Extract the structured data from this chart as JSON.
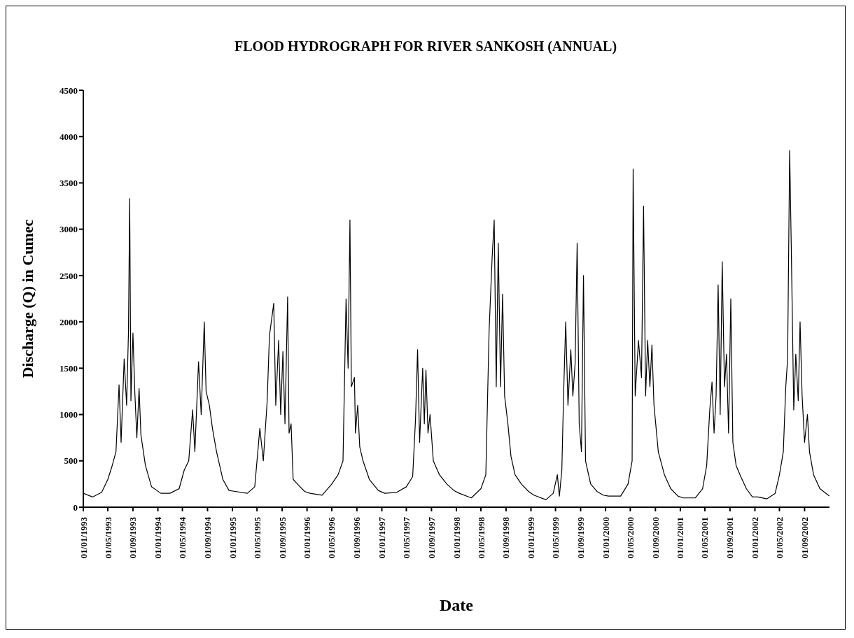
{
  "chart_data": {
    "type": "line",
    "title": "FLOOD HYDROGRAPH FOR RIVER SANKOSH (ANNUAL)",
    "xlabel": "Date",
    "ylabel": "Discharge (Q) in Cumec",
    "x": [
      "1993-01-01",
      "1993-02-15",
      "1993-04-01",
      "1993-05-01",
      "1993-05-20",
      "1993-06-10",
      "1993-06-25",
      "1993-07-05",
      "1993-07-20",
      "1993-08-01",
      "1993-08-10",
      "1993-08-16",
      "1993-08-22",
      "1993-09-01",
      "1993-09-10",
      "1993-09-20",
      "1993-10-01",
      "1993-10-10",
      "1993-11-01",
      "1993-12-01",
      "1994-01-15",
      "1994-03-01",
      "1994-04-15",
      "1994-05-10",
      "1994-06-01",
      "1994-06-20",
      "1994-07-01",
      "1994-07-19",
      "1994-08-01",
      "1994-08-16",
      "1994-08-25",
      "1994-09-10",
      "1994-09-25",
      "1994-10-15",
      "1994-11-15",
      "1994-12-15",
      "1995-01-15",
      "1995-03-15",
      "1995-04-20",
      "1995-05-15",
      "1995-06-01",
      "1995-06-20",
      "1995-07-01",
      "1995-07-22",
      "1995-08-01",
      "1995-08-15",
      "1995-08-25",
      "1995-09-05",
      "1995-09-15",
      "1995-09-28",
      "1995-10-05",
      "1995-10-15",
      "1995-10-25",
      "1995-11-15",
      "1995-12-20",
      "1996-01-15",
      "1996-03-15",
      "1996-05-01",
      "1996-06-01",
      "1996-06-25",
      "1996-07-10",
      "1996-07-20",
      "1996-07-29",
      "1996-08-05",
      "1996-08-20",
      "1996-08-25",
      "1996-09-05",
      "1996-09-15",
      "1996-10-01",
      "1996-11-01",
      "1996-12-15",
      "1997-01-15",
      "1997-03-15",
      "1997-05-01",
      "1997-06-01",
      "1997-06-15",
      "1997-06-25",
      "1997-07-05",
      "1997-07-20",
      "1997-07-28",
      "1997-08-05",
      "1997-08-15",
      "1997-08-25",
      "1997-09-10",
      "1997-10-10",
      "1997-11-15",
      "1997-12-20",
      "1998-01-15",
      "1998-03-15",
      "1998-05-01",
      "1998-05-25",
      "1998-06-10",
      "1998-06-25",
      "1998-07-05",
      "1998-07-15",
      "1998-07-25",
      "1998-08-05",
      "1998-08-15",
      "1998-08-25",
      "1998-09-10",
      "1998-09-25",
      "1998-10-15",
      "1998-11-15",
      "1998-12-20",
      "1999-01-15",
      "1999-03-15",
      "1999-04-20",
      "1999-05-10",
      "1999-05-20",
      "1999-06-01",
      "1999-06-10",
      "1999-06-20",
      "1999-07-01",
      "1999-07-15",
      "1999-07-25",
      "1999-08-05",
      "1999-08-15",
      "1999-08-25",
      "1999-09-05",
      "1999-09-15",
      "1999-09-25",
      "1999-10-20",
      "1999-11-20",
      "1999-12-20",
      "2000-01-15",
      "2000-03-15",
      "2000-04-20",
      "2000-05-10",
      "2000-05-15",
      "2000-05-25",
      "2000-06-10",
      "2000-06-25",
      "2000-07-05",
      "2000-07-15",
      "2000-07-25",
      "2000-08-05",
      "2000-08-15",
      "2000-08-25",
      "2000-09-15",
      "2000-10-15",
      "2000-11-15",
      "2000-12-20",
      "2001-01-15",
      "2001-03-15",
      "2001-04-20",
      "2001-05-10",
      "2001-05-25",
      "2001-06-05",
      "2001-06-15",
      "2001-06-25",
      "2001-07-05",
      "2001-07-15",
      "2001-07-25",
      "2001-08-05",
      "2001-08-15",
      "2001-08-25",
      "2001-09-05",
      "2001-09-15",
      "2001-10-01",
      "2001-10-20",
      "2001-11-20",
      "2001-12-20",
      "2002-01-15",
      "2002-03-01",
      "2002-04-10",
      "2002-05-01",
      "2002-05-20",
      "2002-06-01",
      "2002-06-10",
      "2002-06-20",
      "2002-06-28",
      "2002-07-10",
      "2002-07-20",
      "2002-08-01",
      "2002-08-10",
      "2002-08-20",
      "2002-09-01",
      "2002-09-15",
      "2002-09-25",
      "2002-10-15",
      "2002-11-15",
      "2002-12-31"
    ],
    "series": [
      {
        "color": "#000000",
        "values": [
          150,
          110,
          160,
          300,
          430,
          600,
          1320,
          700,
          1600,
          1100,
          1880,
          3330,
          1150,
          1880,
          1250,
          750,
          1280,
          780,
          450,
          220,
          150,
          150,
          200,
          400,
          500,
          1050,
          600,
          1570,
          1000,
          2000,
          1250,
          1100,
          850,
          600,
          300,
          180,
          170,
          150,
          220,
          850,
          500,
          1150,
          1850,
          2200,
          1100,
          1800,
          1000,
          1680,
          900,
          2270,
          800,
          900,
          300,
          250,
          170,
          150,
          130,
          250,
          350,
          500,
          2250,
          1500,
          3100,
          1300,
          1400,
          800,
          1100,
          650,
          500,
          300,
          180,
          150,
          160,
          220,
          330,
          950,
          1700,
          700,
          1500,
          900,
          1480,
          800,
          1000,
          500,
          350,
          250,
          180,
          150,
          100,
          200,
          350,
          1900,
          2700,
          3100,
          1300,
          2850,
          1300,
          2300,
          1200,
          900,
          550,
          350,
          250,
          170,
          130,
          80,
          150,
          350,
          120,
          400,
          1250,
          2000,
          1100,
          1700,
          1200,
          1550,
          2850,
          900,
          600,
          2500,
          500,
          250,
          170,
          130,
          120,
          120,
          250,
          500,
          3650,
          1200,
          1800,
          1400,
          3250,
          1200,
          1800,
          1300,
          1750,
          1100,
          600,
          350,
          200,
          120,
          100,
          100,
          200,
          450,
          1050,
          1350,
          800,
          1200,
          2400,
          1000,
          2650,
          1300,
          1650,
          800,
          2250,
          700,
          450,
          350,
          200,
          110,
          110,
          90,
          150,
          350,
          600,
          1300,
          1600,
          3850,
          2800,
          1050,
          1650,
          1150,
          2000,
          1200,
          700,
          1000,
          600,
          350,
          200,
          120
        ]
      }
    ],
    "xlim": [
      "1993-01-01",
      "2003-01-01"
    ],
    "xticks": [
      {
        "value": "1993-01-01",
        "label": "01/01/1993"
      },
      {
        "value": "1993-05-01",
        "label": "01/05/1993"
      },
      {
        "value": "1993-09-01",
        "label": "01/09/1993"
      },
      {
        "value": "1994-01-01",
        "label": "01/01/1994"
      },
      {
        "value": "1994-05-01",
        "label": "01/05/1994"
      },
      {
        "value": "1994-09-01",
        "label": "01/09/1994"
      },
      {
        "value": "1995-01-01",
        "label": "01/01/1995"
      },
      {
        "value": "1995-05-01",
        "label": "01/05/1995"
      },
      {
        "value": "1995-09-01",
        "label": "01/09/1995"
      },
      {
        "value": "1996-01-01",
        "label": "01/01/1996"
      },
      {
        "value": "1996-05-01",
        "label": "01/05/1996"
      },
      {
        "value": "1996-09-01",
        "label": "01/09/1996"
      },
      {
        "value": "1997-01-01",
        "label": "01/01/1997"
      },
      {
        "value": "1997-05-01",
        "label": "01/05/1997"
      },
      {
        "value": "1997-09-01",
        "label": "01/09/1997"
      },
      {
        "value": "1998-01-01",
        "label": "01/01/1998"
      },
      {
        "value": "1998-05-01",
        "label": "01/05/1998"
      },
      {
        "value": "1998-09-01",
        "label": "01/09/1998"
      },
      {
        "value": "1999-01-01",
        "label": "01/01/1999"
      },
      {
        "value": "1999-05-01",
        "label": "01/05/1999"
      },
      {
        "value": "1999-09-01",
        "label": "01/09/1999"
      },
      {
        "value": "2000-01-01",
        "label": "01/01/2000"
      },
      {
        "value": "2000-05-01",
        "label": "01/05/2000"
      },
      {
        "value": "2000-09-01",
        "label": "01/09/2000"
      },
      {
        "value": "2001-01-01",
        "label": "01/01/2001"
      },
      {
        "value": "2001-05-01",
        "label": "01/05/2001"
      },
      {
        "value": "2001-09-01",
        "label": "01/09/2001"
      },
      {
        "value": "2002-01-01",
        "label": "01/01/2002"
      },
      {
        "value": "2002-05-01",
        "label": "01/05/2002"
      },
      {
        "value": "2002-09-01",
        "label": "01/09/2002"
      }
    ],
    "ylim": [
      0,
      4500
    ],
    "yticks": [
      0,
      500,
      1000,
      1500,
      2000,
      2500,
      3000,
      3500,
      4000,
      4500
    ],
    "grid": false,
    "legend": false,
    "marker": "none",
    "line_style": "solid"
  }
}
